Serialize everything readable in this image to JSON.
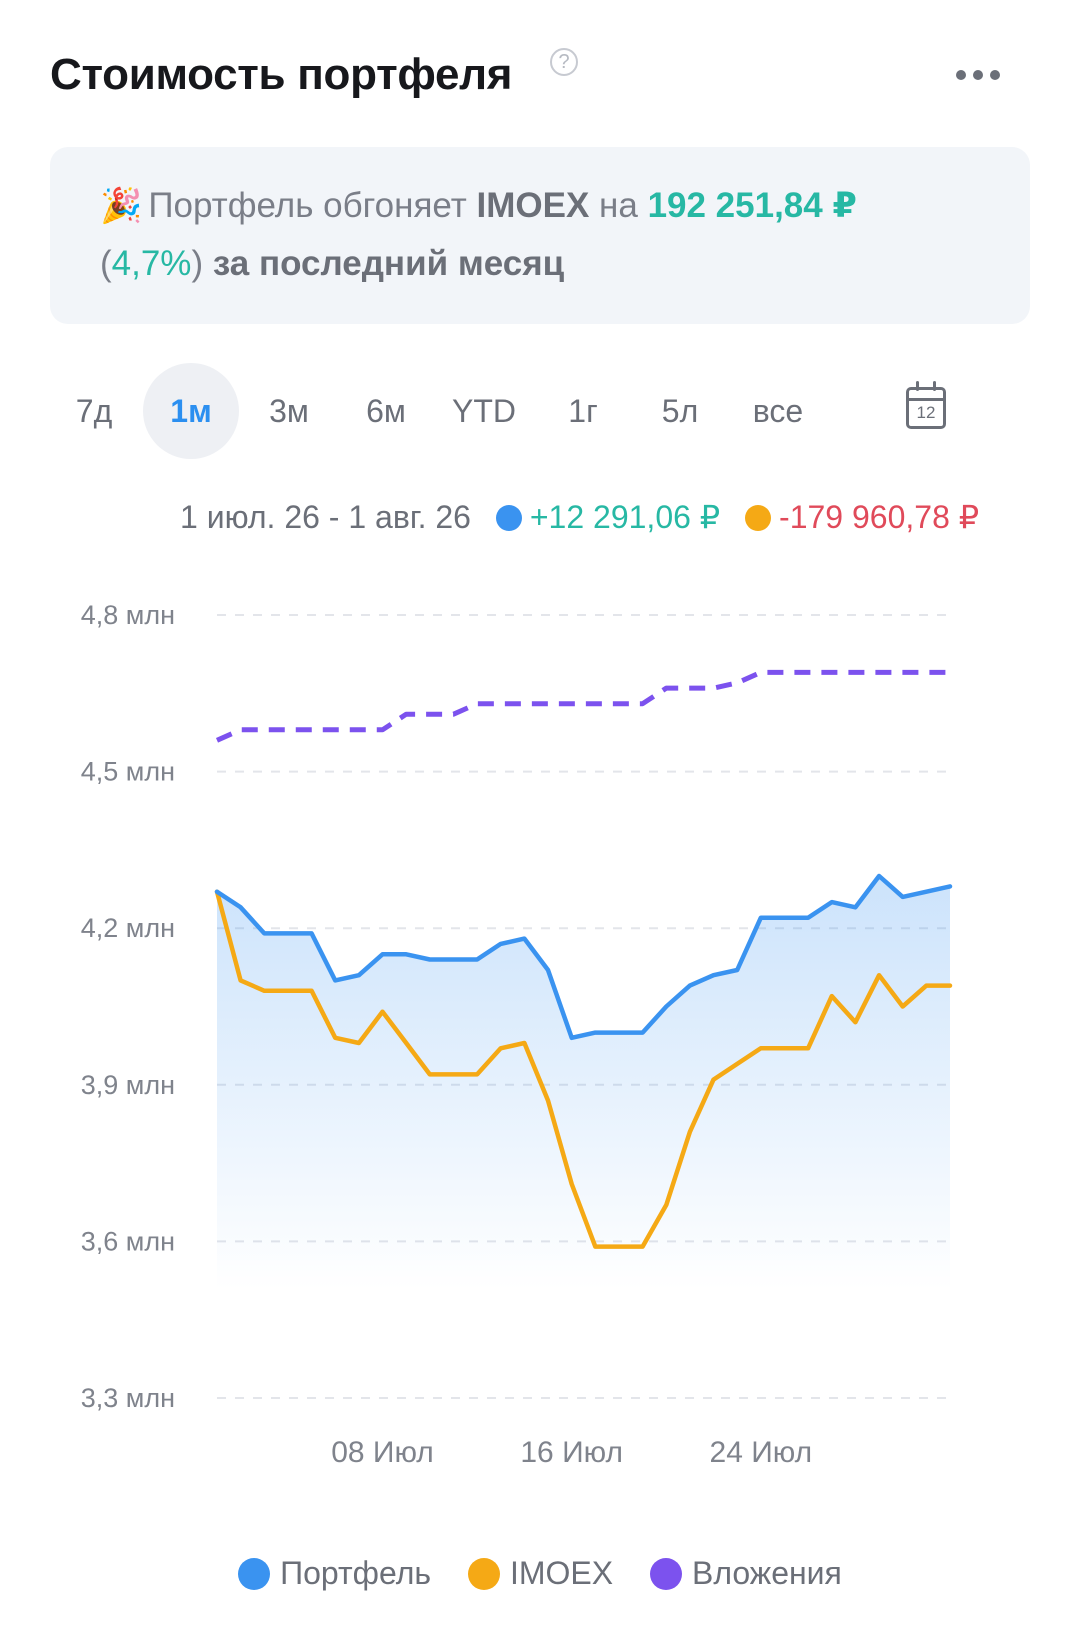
{
  "header": {
    "title": "Стоимость портфеля",
    "help_icon": "?"
  },
  "banner": {
    "icon": "🎉",
    "text_1": "Портфель обгоняет",
    "index_name": "IMOEX",
    "text_2": "на",
    "amount": "192 251,84 ₽",
    "percent": "4,7%",
    "text_3": "за последний месяц"
  },
  "periods": [
    {
      "label": "7д",
      "active": false
    },
    {
      "label": "1м",
      "active": true
    },
    {
      "label": "3м",
      "active": false
    },
    {
      "label": "6м",
      "active": false
    },
    {
      "label": "YTD",
      "active": false
    },
    {
      "label": "1г",
      "active": false
    },
    {
      "label": "5л",
      "active": false
    },
    {
      "label": "все",
      "active": false
    }
  ],
  "calendar_icon_day": "12",
  "summary": {
    "date_range": "1 июл. 26 - 1 авг. 26",
    "portfolio_change": "+12 291,06 ₽",
    "imoex_change": "-179 960,78 ₽"
  },
  "colors": {
    "portfolio": "#3a93f0",
    "imoex": "#f5a915",
    "investments": "#7c52ee",
    "positive": "#27b8a4",
    "negative": "#e04a5a"
  },
  "chart_data": {
    "type": "line",
    "title": "",
    "xlabel": "",
    "ylabel": "",
    "ylim": [
      3.3,
      4.8
    ],
    "y_ticks": [
      "3,3 млн",
      "3,6 млн",
      "3,9 млн",
      "4,2 млн",
      "4,5 млн",
      "4,8 млн"
    ],
    "y_tick_values": [
      3.3,
      3.6,
      3.9,
      4.2,
      4.5,
      4.8
    ],
    "x_range": [
      1,
      32
    ],
    "x_ticks": [
      "08 Июл",
      "16 Июл",
      "24 Июл"
    ],
    "x_tick_values": [
      8,
      16,
      24
    ],
    "grid": true,
    "series": [
      {
        "name": "Портфель",
        "style": "area",
        "x": [
          1,
          2,
          3,
          4,
          5,
          6,
          7,
          8,
          9,
          10,
          11,
          12,
          13,
          14,
          15,
          16,
          17,
          18,
          19,
          20,
          21,
          22,
          23,
          24,
          25,
          26,
          27,
          28,
          29,
          30,
          31,
          32
        ],
        "values": [
          4.27,
          4.24,
          4.19,
          4.19,
          4.19,
          4.1,
          4.11,
          4.15,
          4.15,
          4.14,
          4.14,
          4.14,
          4.17,
          4.18,
          4.12,
          3.99,
          4.0,
          4.0,
          4.0,
          4.05,
          4.09,
          4.11,
          4.12,
          4.22,
          4.22,
          4.22,
          4.25,
          4.24,
          4.3,
          4.26,
          4.27,
          4.28
        ]
      },
      {
        "name": "IMOEX",
        "style": "line",
        "x": [
          1,
          2,
          3,
          4,
          5,
          6,
          7,
          8,
          9,
          10,
          11,
          12,
          13,
          14,
          15,
          16,
          17,
          18,
          19,
          20,
          21,
          22,
          23,
          24,
          25,
          26,
          27,
          28,
          29,
          30,
          31,
          32
        ],
        "values": [
          4.27,
          4.1,
          4.08,
          4.08,
          4.08,
          3.99,
          3.98,
          4.04,
          3.98,
          3.92,
          3.92,
          3.92,
          3.97,
          3.98,
          3.87,
          3.71,
          3.59,
          3.59,
          3.59,
          3.67,
          3.81,
          3.91,
          3.94,
          3.97,
          3.97,
          3.97,
          4.07,
          4.02,
          4.11,
          4.05,
          4.09,
          4.09
        ]
      },
      {
        "name": "Вложения",
        "style": "dashed",
        "x": [
          1,
          2,
          3,
          4,
          5,
          6,
          7,
          8,
          9,
          10,
          11,
          12,
          13,
          14,
          15,
          16,
          17,
          18,
          19,
          20,
          21,
          22,
          23,
          24,
          25,
          26,
          27,
          28,
          29,
          30,
          31,
          32
        ],
        "values": [
          4.56,
          4.58,
          4.58,
          4.58,
          4.58,
          4.58,
          4.58,
          4.58,
          4.61,
          4.61,
          4.61,
          4.63,
          4.63,
          4.63,
          4.63,
          4.63,
          4.63,
          4.63,
          4.63,
          4.66,
          4.66,
          4.66,
          4.67,
          4.69,
          4.69,
          4.69,
          4.69,
          4.69,
          4.69,
          4.69,
          4.69,
          4.69
        ]
      }
    ]
  }
}
